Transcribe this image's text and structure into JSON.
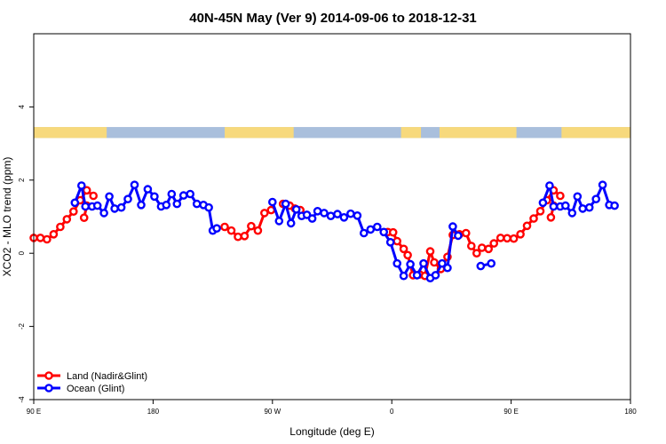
{
  "chart_data": {
    "type": "line",
    "title": "40N-45N May (Ver 9)   2014-09-06 to 2018-12-31",
    "xlabel": "Longitude (deg E)",
    "ylabel": "XCO2 - MLO trend (ppm)",
    "x_ticks": [
      {
        "value": 90,
        "label": "90 E"
      },
      {
        "value": 180,
        "label": "180"
      },
      {
        "value": 270,
        "label": "90 W"
      },
      {
        "value": 360,
        "label": "0"
      },
      {
        "value": 450,
        "label": "90 E"
      },
      {
        "value": 540,
        "label": "180"
      }
    ],
    "y_ticks": [
      {
        "value": -4,
        "label": "-4"
      },
      {
        "value": -2,
        "label": "-2"
      },
      {
        "value": 0,
        "label": "0"
      },
      {
        "value": 2,
        "label": "2"
      },
      {
        "value": 4,
        "label": "4"
      }
    ],
    "xlim": [
      90,
      540
    ],
    "ylim": [
      -4,
      6
    ],
    "grid": false,
    "legend_position": "bottom-left",
    "land_sea_strip": {
      "y_range": [
        3.15,
        3.45
      ],
      "ocean_color": "#a9bfdc",
      "land_color": "#f7d97c",
      "land_segments": [
        [
          90,
          145
        ],
        [
          234,
          286
        ],
        [
          367,
          382
        ],
        [
          396,
          454
        ],
        [
          488,
          540
        ]
      ]
    },
    "series": [
      {
        "name": "Land (Nadir&Glint)",
        "color": "#ff0000",
        "segments": [
          [
            [
              90,
              0.42
            ],
            [
              95,
              0.42
            ],
            [
              100,
              0.38
            ],
            [
              105,
              0.52
            ],
            [
              110,
              0.72
            ],
            [
              115,
              0.93
            ],
            [
              120,
              1.14
            ],
            [
              125,
              1.45
            ],
            [
              130,
              1.72
            ],
            [
              135,
              1.57
            ]
          ],
          [
            [
              128,
              0.97
            ],
            [
              130,
              1.3
            ]
          ],
          [
            [
              234,
              0.72
            ],
            [
              239,
              0.62
            ],
            [
              244,
              0.45
            ],
            [
              249,
              0.47
            ],
            [
              254,
              0.74
            ],
            [
              259,
              0.62
            ],
            [
              264,
              1.1
            ],
            [
              269,
              1.18
            ]
          ],
          [
            [
              278,
              1.35
            ],
            [
              283,
              1.3
            ],
            [
              287,
              1.22
            ],
            [
              291,
              1.18
            ]
          ],
          [
            [
              357,
              0.58
            ],
            [
              361,
              0.57
            ],
            [
              364,
              0.33
            ],
            [
              369,
              0.12
            ],
            [
              372,
              -0.05
            ],
            [
              376,
              -0.6
            ],
            [
              381,
              -0.58
            ],
            [
              385,
              -0.62
            ],
            [
              389,
              0.05
            ],
            [
              392,
              -0.25
            ],
            [
              397,
              -0.43
            ],
            [
              402,
              -0.1
            ],
            [
              406,
              0.5
            ],
            [
              411,
              0.52
            ],
            [
              416,
              0.55
            ],
            [
              420,
              0.2
            ],
            [
              424,
              0.0
            ],
            [
              428,
              0.15
            ],
            [
              433,
              0.12
            ],
            [
              437,
              0.27
            ],
            [
              442,
              0.42
            ],
            [
              447,
              0.41
            ],
            [
              452,
              0.4
            ],
            [
              457,
              0.52
            ],
            [
              462,
              0.75
            ],
            [
              467,
              0.95
            ],
            [
              472,
              1.15
            ],
            [
              477,
              1.45
            ],
            [
              482,
              1.72
            ],
            [
              487,
              1.57
            ]
          ],
          [
            [
              480,
              0.98
            ],
            [
              482,
              1.3
            ]
          ]
        ]
      },
      {
        "name": "Ocean (Glint)",
        "color": "#0000ff",
        "segments": [
          [
            [
              121,
              1.38
            ],
            [
              126,
              1.85
            ],
            [
              129,
              1.28
            ],
            [
              134,
              1.28
            ],
            [
              138,
              1.3
            ],
            [
              143,
              1.1
            ],
            [
              147,
              1.55
            ],
            [
              151,
              1.22
            ],
            [
              156,
              1.25
            ],
            [
              161,
              1.48
            ],
            [
              166,
              1.87
            ],
            [
              171,
              1.32
            ],
            [
              176,
              1.75
            ],
            [
              181,
              1.55
            ],
            [
              186,
              1.28
            ],
            [
              190,
              1.32
            ],
            [
              194,
              1.62
            ],
            [
              198,
              1.35
            ],
            [
              203,
              1.58
            ],
            [
              208,
              1.62
            ],
            [
              213,
              1.35
            ],
            [
              218,
              1.32
            ],
            [
              222,
              1.25
            ],
            [
              225,
              0.62
            ],
            [
              228,
              0.68
            ]
          ],
          [
            [
              270,
              1.4
            ],
            [
              275,
              0.88
            ],
            [
              280,
              1.35
            ],
            [
              284,
              0.82
            ],
            [
              288,
              1.2
            ],
            [
              292,
              1.02
            ],
            [
              296,
              1.05
            ],
            [
              300,
              0.95
            ],
            [
              304,
              1.15
            ],
            [
              309,
              1.1
            ],
            [
              314,
              1.02
            ],
            [
              319,
              1.07
            ],
            [
              324,
              0.98
            ],
            [
              329,
              1.08
            ],
            [
              334,
              1.03
            ],
            [
              339,
              0.55
            ],
            [
              344,
              0.65
            ],
            [
              349,
              0.72
            ],
            [
              354,
              0.58
            ],
            [
              359,
              0.3
            ],
            [
              364,
              -0.28
            ],
            [
              369,
              -0.62
            ],
            [
              374,
              -0.3
            ],
            [
              379,
              -0.6
            ],
            [
              384,
              -0.28
            ],
            [
              389,
              -0.68
            ],
            [
              393,
              -0.6
            ],
            [
              398,
              -0.28
            ],
            [
              402,
              -0.4
            ],
            [
              406,
              0.73
            ],
            [
              410,
              0.48
            ]
          ],
          [
            [
              427,
              -0.35
            ],
            [
              435,
              -0.28
            ]
          ],
          [
            [
              474,
              1.38
            ],
            [
              479,
              1.85
            ],
            [
              482,
              1.28
            ],
            [
              487,
              1.28
            ],
            [
              491,
              1.3
            ],
            [
              496,
              1.1
            ],
            [
              500,
              1.55
            ],
            [
              504,
              1.22
            ],
            [
              509,
              1.25
            ],
            [
              514,
              1.48
            ],
            [
              519,
              1.87
            ],
            [
              524,
              1.32
            ],
            [
              528,
              1.3
            ]
          ]
        ]
      }
    ]
  }
}
